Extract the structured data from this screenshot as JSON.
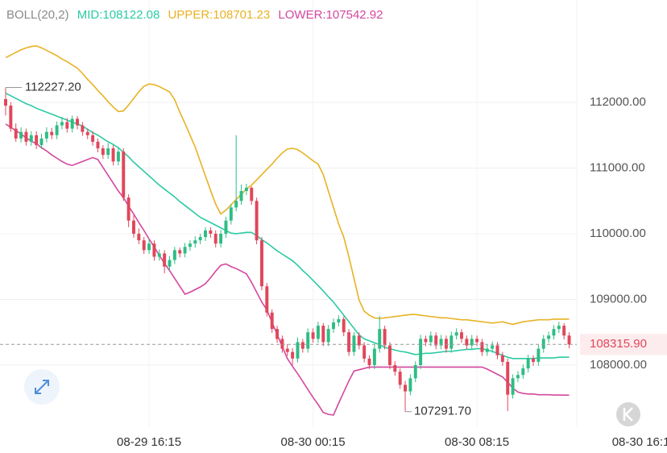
{
  "chart_data": {
    "type": "candlestick",
    "indicator": "BOLL(20,2)",
    "open": [
      112050,
      111950,
      111600,
      111450,
      111550,
      111400,
      111500,
      111350,
      111450,
      111550,
      111500,
      111650,
      111700,
      111600,
      111750,
      111650,
      111550,
      111500,
      111400,
      111300,
      111200,
      111300,
      111100,
      111250,
      110550,
      110200,
      110000,
      109900,
      109750,
      109850,
      109650,
      109700,
      109500,
      109600,
      109750,
      109700,
      109800,
      109850,
      109900,
      109950,
      110050,
      110000,
      109850,
      110000,
      110200,
      110400,
      110500,
      110650,
      110700,
      110500,
      109900,
      109200,
      108800,
      108550,
      108400,
      108250,
      108200,
      108100,
      108350,
      108250,
      108500,
      108400,
      108600,
      108350,
      108550,
      108650,
      108700,
      108500,
      108200,
      108450,
      108300,
      108100,
      108000,
      108250,
      108550,
      108300,
      108000,
      107900,
      107700,
      107600,
      107800,
      108000,
      108400,
      108350,
      108450,
      108300,
      108400,
      108250,
      108450,
      108500,
      108400,
      108300,
      108400,
      108350,
      108200,
      108250,
      108300,
      108150,
      108050,
      107550,
      107800,
      107850,
      107950,
      108100,
      108050,
      108250,
      108400,
      108450,
      108550,
      108600,
      108450
    ],
    "high": [
      112227.2,
      112000,
      111680,
      111620,
      111600,
      111560,
      111560,
      111520,
      111620,
      111610,
      111710,
      111780,
      111760,
      111800,
      111790,
      111700,
      111600,
      111560,
      111450,
      111350,
      111380,
      111350,
      111310,
      111300,
      110600,
      110280,
      110080,
      109950,
      109920,
      109900,
      109760,
      109750,
      109660,
      109800,
      109790,
      109860,
      109900,
      109960,
      110000,
      110100,
      110100,
      110050,
      110060,
      110260,
      110450,
      111500,
      110750,
      110760,
      110720,
      110550,
      109950,
      109250,
      108850,
      108600,
      108450,
      108320,
      108260,
      108420,
      108400,
      108560,
      108560,
      108660,
      108640,
      108610,
      108710,
      108760,
      108740,
      108550,
      108500,
      108500,
      108350,
      108150,
      108310,
      108750,
      108600,
      108350,
      108060,
      107950,
      107760,
      107860,
      108060,
      108460,
      108450,
      108510,
      108500,
      108460,
      108450,
      108510,
      108560,
      108550,
      108450,
      108460,
      108450,
      108400,
      108310,
      108360,
      108350,
      108200,
      108100,
      107860,
      107910,
      108010,
      108160,
      108150,
      108310,
      108460,
      108510,
      108610,
      108660,
      108640,
      108500
    ],
    "low": [
      111800,
      111550,
      111400,
      111390,
      111340,
      111340,
      111290,
      111290,
      111390,
      111440,
      111440,
      111590,
      111540,
      111540,
      111590,
      111490,
      111440,
      111340,
      111240,
      111140,
      111140,
      111040,
      111040,
      110500,
      110100,
      109940,
      109840,
      109690,
      109690,
      109590,
      109590,
      109400,
      109440,
      109540,
      109640,
      109640,
      109740,
      109790,
      109840,
      109890,
      109940,
      109790,
      109790,
      109940,
      110140,
      110340,
      110440,
      110590,
      110440,
      109840,
      109140,
      108740,
      108490,
      108340,
      108190,
      108140,
      108000,
      108040,
      108190,
      108190,
      108340,
      108340,
      108290,
      108290,
      108490,
      108590,
      108440,
      108140,
      108140,
      108240,
      108040,
      107940,
      107940,
      108190,
      108240,
      107940,
      107840,
      107640,
      107291.7,
      107540,
      107740,
      107940,
      108290,
      108290,
      108240,
      108240,
      108190,
      108190,
      108390,
      108340,
      108240,
      108240,
      108290,
      108140,
      108140,
      108190,
      108090,
      107990,
      107300,
      107490,
      107740,
      107790,
      107890,
      107990,
      107990,
      108190,
      108340,
      108390,
      108490,
      108390,
      108256
    ],
    "close": [
      111950,
      111600,
      111450,
      111550,
      111400,
      111500,
      111350,
      111450,
      111550,
      111500,
      111650,
      111700,
      111600,
      111750,
      111650,
      111550,
      111500,
      111400,
      111300,
      111200,
      111300,
      111100,
      111250,
      110550,
      110200,
      110000,
      109900,
      109750,
      109850,
      109650,
      109700,
      109500,
      109600,
      109750,
      109700,
      109800,
      109850,
      109900,
      109950,
      110050,
      110000,
      109850,
      110000,
      110200,
      110400,
      110500,
      110650,
      110700,
      110500,
      109900,
      109200,
      108800,
      108550,
      108400,
      108250,
      108200,
      108100,
      108350,
      108250,
      108500,
      108400,
      108600,
      108350,
      108550,
      108650,
      108700,
      108500,
      108200,
      108450,
      108300,
      108100,
      108000,
      108250,
      108550,
      108300,
      108000,
      107900,
      107700,
      107600,
      107800,
      108000,
      108400,
      108350,
      108450,
      108300,
      108400,
      108250,
      108450,
      108500,
      108400,
      108300,
      108400,
      108350,
      108200,
      108250,
      108300,
      108150,
      108050,
      107550,
      107800,
      107850,
      107950,
      108100,
      108050,
      108250,
      108400,
      108450,
      108550,
      108600,
      108450,
      108315.9
    ],
    "up_color": "#2ebd85",
    "down_color": "#e0475a",
    "bands": [
      {
        "name": "MID:108122.08",
        "color": "#2ccaa4",
        "values": [
          112140,
          112100,
          112060,
          112020,
          111980,
          111950,
          111910,
          111880,
          111850,
          111820,
          111790,
          111760,
          111730,
          111700,
          111670,
          111640,
          111590,
          111540,
          111500,
          111450,
          111400,
          111360,
          111310,
          111240,
          111170,
          111090,
          111020,
          110950,
          110880,
          110810,
          110740,
          110680,
          110620,
          110560,
          110490,
          110430,
          110370,
          110310,
          110250,
          110210,
          110170,
          110130,
          110090,
          110050,
          110010,
          110000,
          110010,
          110020,
          110020,
          109970,
          109910,
          109860,
          109800,
          109740,
          109690,
          109640,
          109590,
          109520,
          109440,
          109370,
          109290,
          109210,
          109130,
          109040,
          108960,
          108860,
          108760,
          108660,
          108560,
          108460,
          108400,
          108370,
          108340,
          108310,
          108270,
          108250,
          108230,
          108210,
          108200,
          108180,
          108160,
          108170,
          108180,
          108180,
          108190,
          108200,
          108210,
          108210,
          108220,
          108230,
          108240,
          108240,
          108250,
          108250,
          108230,
          108210,
          108180,
          108150,
          108120,
          108100,
          108100,
          108100,
          108100,
          108100,
          108110,
          108110,
          108110,
          108110,
          108120,
          108120,
          108122
        ]
      },
      {
        "name": "UPPER:108701.23",
        "color": "#e8b224",
        "values": [
          112680,
          112720,
          112760,
          112800,
          112830,
          112850,
          112860,
          112830,
          112790,
          112750,
          112710,
          112660,
          112620,
          112570,
          112520,
          112440,
          112350,
          112270,
          112180,
          112100,
          112010,
          111930,
          111860,
          111870,
          111960,
          112060,
          112160,
          112245,
          112280,
          112270,
          112240,
          112200,
          112160,
          112040,
          111850,
          111680,
          111500,
          111320,
          111100,
          110880,
          110660,
          110450,
          110300,
          110360,
          110440,
          110520,
          110600,
          110680,
          110740,
          110820,
          110900,
          110980,
          111060,
          111150,
          111230,
          111290,
          111300,
          111280,
          111230,
          111170,
          111110,
          111060,
          110900,
          110650,
          110400,
          110150,
          109950,
          109650,
          109320,
          108990,
          108820,
          108760,
          108720,
          108710,
          108720,
          108730,
          108740,
          108750,
          108760,
          108770,
          108770,
          108760,
          108750,
          108740,
          108730,
          108720,
          108720,
          108710,
          108700,
          108690,
          108690,
          108680,
          108670,
          108660,
          108650,
          108640,
          108650,
          108660,
          108640,
          108620,
          108640,
          108660,
          108670,
          108680,
          108690,
          108690,
          108690,
          108700,
          108700,
          108700,
          108701
        ]
      },
      {
        "name": "LOWER:107542.92",
        "color": "#d4479f",
        "values": [
          111670,
          111620,
          111570,
          111520,
          111460,
          111410,
          111370,
          111310,
          111260,
          111200,
          111150,
          111100,
          111060,
          111040,
          111070,
          111100,
          111130,
          111160,
          111130,
          111010,
          110890,
          110770,
          110650,
          110550,
          110420,
          110300,
          110170,
          110050,
          109920,
          109800,
          109670,
          109550,
          109440,
          109320,
          109200,
          109080,
          109110,
          109150,
          109190,
          109240,
          109330,
          109430,
          109520,
          109540,
          109500,
          109470,
          109430,
          109390,
          109260,
          109110,
          108960,
          108840,
          108650,
          108470,
          108280,
          108100,
          107980,
          107870,
          107750,
          107630,
          107510,
          107400,
          107280,
          107250,
          107240,
          107420,
          107590,
          107760,
          107910,
          107930,
          107950,
          107970,
          107970,
          107970,
          107970,
          107970,
          107970,
          107970,
          107970,
          107970,
          107970,
          107970,
          107970,
          107970,
          107970,
          107970,
          107970,
          107970,
          107970,
          107970,
          107970,
          107970,
          107970,
          107970,
          107940,
          107900,
          107860,
          107820,
          107740,
          107650,
          107590,
          107570,
          107560,
          107560,
          107550,
          107550,
          107550,
          107545,
          107545,
          107543,
          107543
        ]
      }
    ],
    "xlim": [
      -1.1,
      129.1
    ],
    "xticks": [
      {
        "value": 28,
        "label": "08-29 16:15"
      },
      {
        "value": 60,
        "label": "08-30 00:15"
      },
      {
        "value": 92,
        "label": "08-30 08:15"
      },
      {
        "value": 124,
        "label": "08-30 16:1"
      }
    ],
    "ylim": [
      107055,
      113558
    ],
    "yticks": [
      {
        "value": 108000,
        "label": "108000.00"
      },
      {
        "value": 109000,
        "label": "109000.00"
      },
      {
        "value": 110000,
        "label": "110000.00"
      },
      {
        "value": 111000,
        "label": "111000.00"
      },
      {
        "value": 112000,
        "label": "112000.00"
      }
    ],
    "grid": true,
    "last_price": {
      "value": 108315.9,
      "label": "108315.90"
    },
    "max_label": {
      "value": 112227.2,
      "label": "112227.20"
    },
    "min_label": {
      "value": 107291.7,
      "label": "107291.70"
    }
  }
}
